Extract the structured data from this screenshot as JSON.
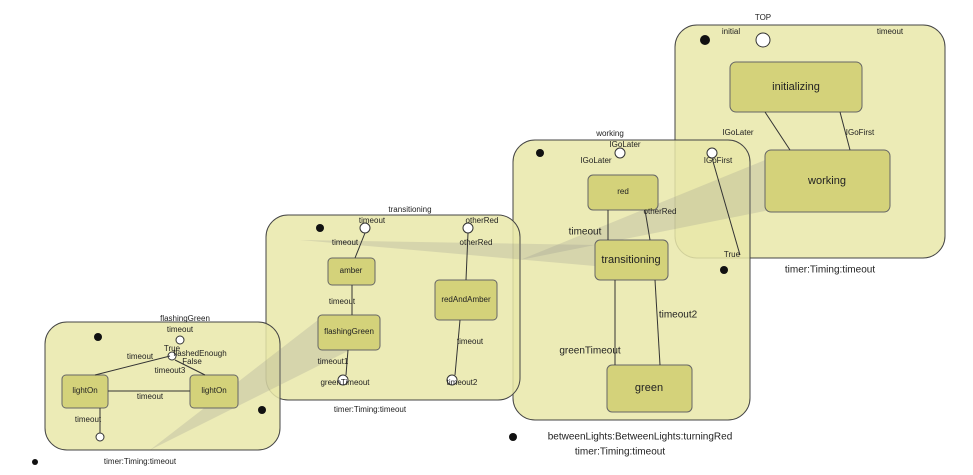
{
  "panels": [
    {
      "name": "TOP",
      "states": [
        "initializing",
        "working"
      ],
      "labels": [
        "initial",
        "timeout",
        "IGoLater",
        "IGoFirst"
      ],
      "footer": [
        "timer:Timing:timeout"
      ]
    },
    {
      "name": "working",
      "states": [
        "red",
        "transitioning",
        "green"
      ],
      "labels": [
        "IGoLater",
        "IGoLater",
        "IGoFirst",
        "otherRed",
        "timeout",
        "timeout2",
        "greenTimeout",
        "True"
      ],
      "footer": [
        "betweenLights:BetweenLights:turningRed",
        "timer:Timing:timeout"
      ]
    },
    {
      "name": "transitioning",
      "states": [
        "amber",
        "flashingGreen",
        "redAndAmber"
      ],
      "labels": [
        "timeout",
        "otherRed",
        "otherRed",
        "timeout",
        "timeout",
        "timeout1",
        "greenTimeout",
        "timeout",
        "timeout2"
      ],
      "footer": [
        "timer:Timing:timeout"
      ]
    },
    {
      "name": "flashingGreen",
      "states": [
        "lightOn",
        "lightOn"
      ],
      "labels": [
        "timeout",
        "True",
        "flashedEnough",
        "False",
        "timeout",
        "timeout",
        "timeout",
        "timeout3"
      ],
      "footer": [
        "timer:Timing:timeout"
      ]
    }
  ]
}
